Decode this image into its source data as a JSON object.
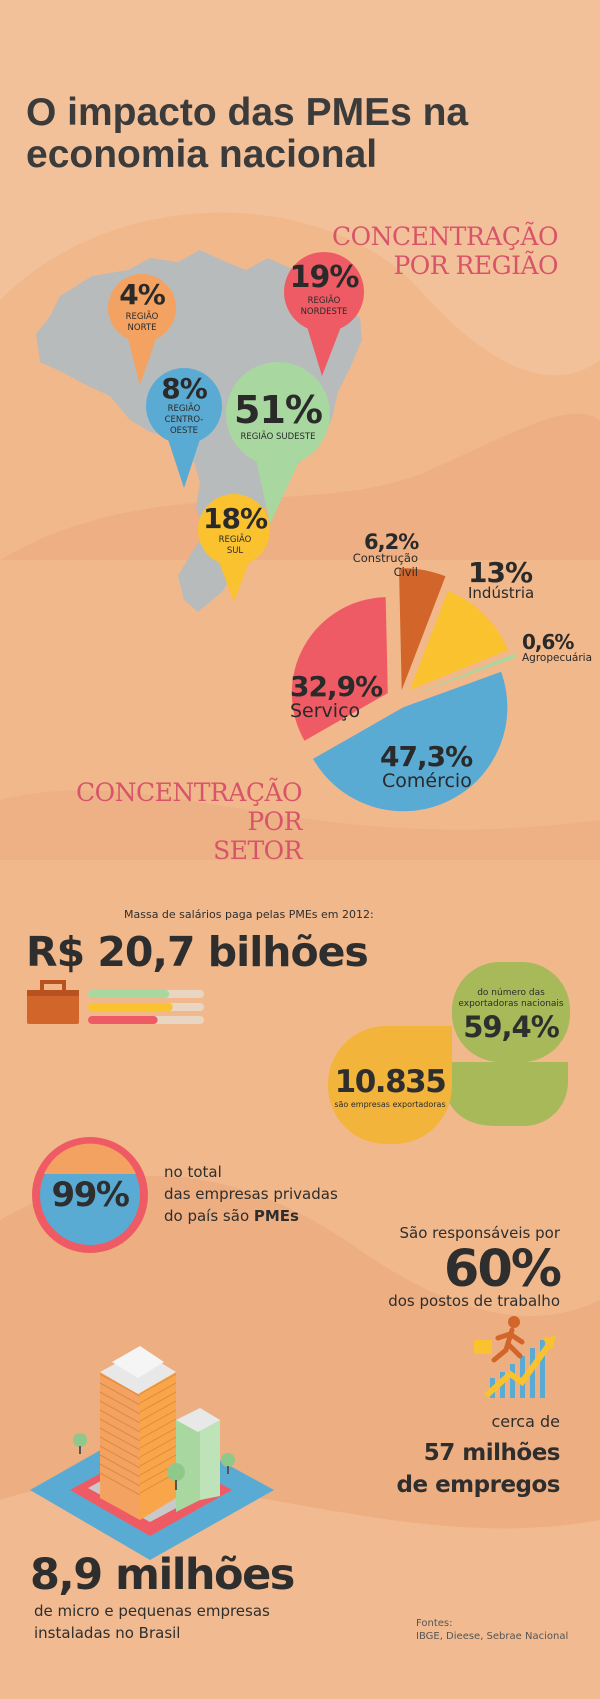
{
  "title": {
    "line1": "O impacto das PMEs na",
    "line2": "economia nacional"
  },
  "colors": {
    "background": "#f1b88b",
    "accent": "#d7546a",
    "orange": "#f4a261",
    "red": "#ef5b64",
    "blue": "#5aabd3",
    "green": "#a8d8a0",
    "yellow": "#f9c22e",
    "rust": "#d2652a",
    "olive": "#a8b95a",
    "map": "#b8bbbc"
  },
  "region_section": {
    "heading_line1": "CONCENTRAÇÃO",
    "heading_line2": "POR REGIÃO"
  },
  "sector_section": {
    "heading_line1": "CONCENTRAÇÃO POR",
    "heading_line2": "SETOR"
  },
  "chart_data": [
    {
      "type": "pie",
      "title": "CONCENTRAÇÃO POR REGIÃO",
      "slices": [
        {
          "label_line1": "REGIÃO",
          "label_line2": "NORTE",
          "label_line3": "",
          "value": 4,
          "value_label": "4%",
          "color": "#f4a261"
        },
        {
          "label_line1": "REGIÃO",
          "label_line2": "NORDESTE",
          "label_line3": "",
          "value": 19,
          "value_label": "19%",
          "color": "#ef5b64"
        },
        {
          "label_line1": "REGIÃO",
          "label_line2": "CENTRO-",
          "label_line3": "OESTE",
          "value": 8,
          "value_label": "8%",
          "color": "#5aabd3"
        },
        {
          "label_line1": "REGIÃO SUDESTE",
          "label_line2": "",
          "label_line3": "",
          "value": 51,
          "value_label": "51%",
          "color": "#a8d8a0"
        },
        {
          "label_line1": "REGIÃO",
          "label_line2": "SUL",
          "label_line3": "",
          "value": 18,
          "value_label": "18%",
          "color": "#f9c22e"
        }
      ]
    },
    {
      "type": "pie",
      "title": "CONCENTRAÇÃO POR SETOR",
      "slices": [
        {
          "label": "Comércio",
          "label_line1": "",
          "value": 47.3,
          "value_label": "47,3%",
          "color": "#5aabd3"
        },
        {
          "label": "Serviço",
          "label_line1": "",
          "value": 32.9,
          "value_label": "32,9%",
          "color": "#ef5b64"
        },
        {
          "label": "",
          "label_line1": "Construção",
          "label_line2": "Civil",
          "value": 6.2,
          "value_label": "6,2%",
          "color": "#d2652a"
        },
        {
          "label": "Indústria",
          "label_line1": "",
          "value": 13,
          "value_label": "13%",
          "color": "#f9c22e"
        },
        {
          "label": "Agropecuária",
          "label_line1": "",
          "value": 0.6,
          "value_label": "0,6%",
          "color": "#a8d8a0"
        }
      ]
    }
  ],
  "salary": {
    "caption": "Massa de salários paga pelas PMEs em 2012:",
    "value": "R$ 20,7 bilhões",
    "bar_fill": [
      0.7,
      0.73,
      0.6
    ]
  },
  "exports": {
    "share_caption_line1": "do número das",
    "share_caption_line2": "exportadoras nacionais",
    "share_value": "59,4%",
    "count_value": "10.835",
    "count_caption": "são empresas exportadoras"
  },
  "private": {
    "value": "99%",
    "line1": "no total",
    "line2": "das empresas privadas",
    "line3_prefix": "do país são ",
    "line3_bold": "PMEs"
  },
  "jobs": {
    "caption_top": "São responsáveis por",
    "value": "60%",
    "caption_bottom": "dos postos de trabalho",
    "approx": "cerca de",
    "count_line1": "57 milhões",
    "count_line2": "de empregos"
  },
  "companies": {
    "value": "8,9 milhões",
    "line1": "de micro e pequenas empresas",
    "line2": "instaladas no Brasil"
  },
  "sources": {
    "label": "Fontes:",
    "text": "IBGE, Dieese, Sebrae Nacional"
  },
  "icons": [
    "briefcase-icon",
    "runner-growth-icon",
    "buildings-illustration",
    "brazil-map"
  ]
}
